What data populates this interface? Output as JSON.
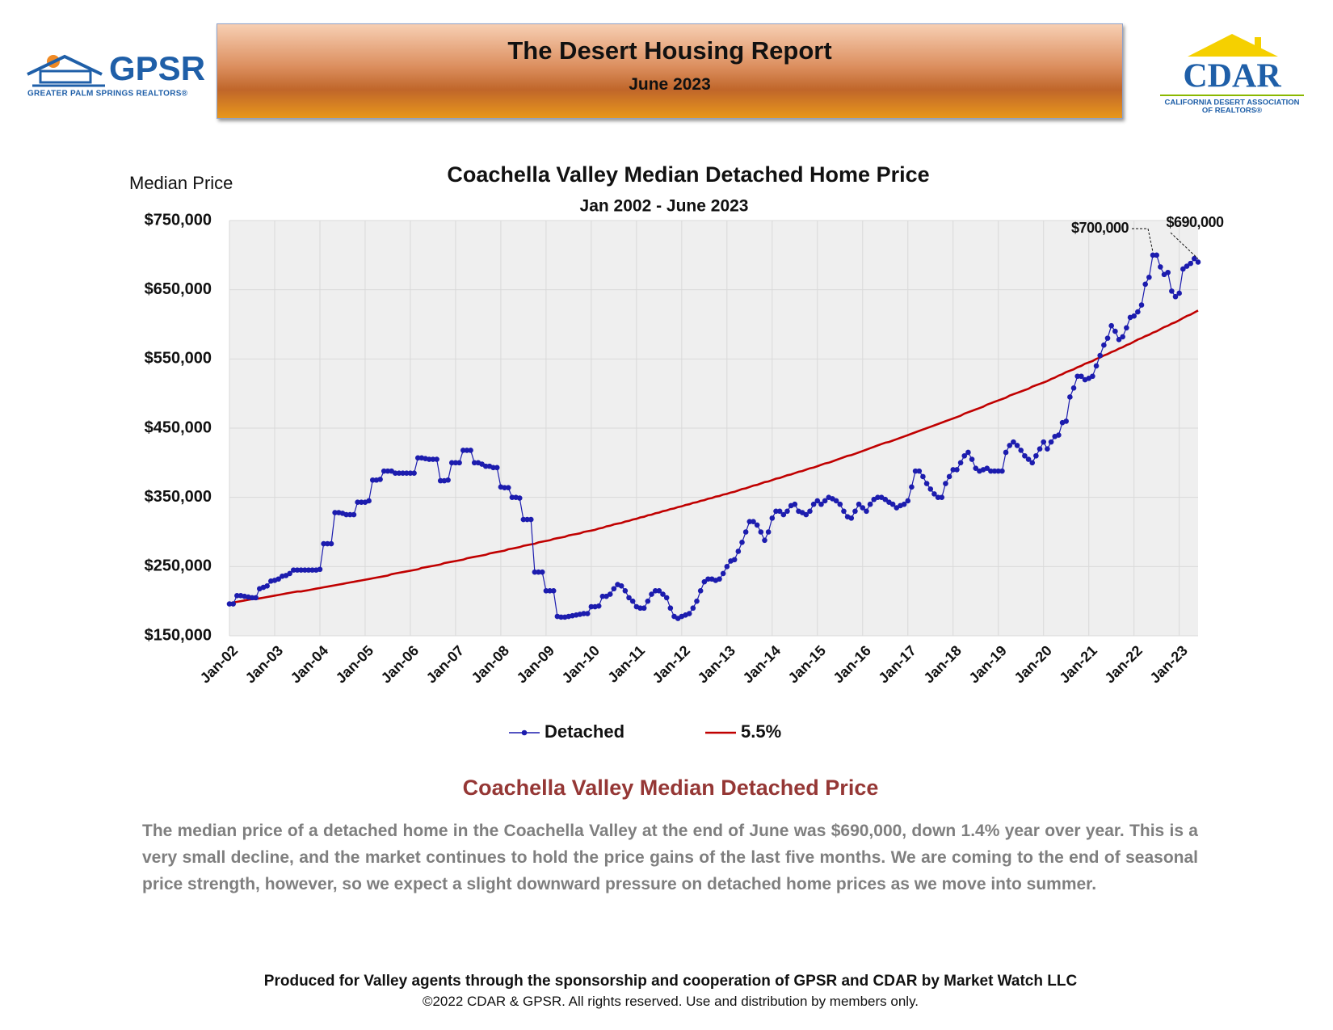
{
  "header": {
    "title": "The Desert Housing Report",
    "subtitle": "June 2023"
  },
  "logos": {
    "left": {
      "name": "GPSR",
      "tagline": "GREATER PALM SPRINGS REALTORS®"
    },
    "right": {
      "name": "CDAR",
      "tagline1": "CALIFORNIA DESERT ASSOCIATION",
      "tagline2": "OF REALTORS®"
    }
  },
  "chart_data": {
    "type": "line",
    "title": "Coachella Valley Median Detached Home Price",
    "subtitle": "Jan 2002 - June 2023",
    "y_label": "Median Price",
    "legend": "bottom",
    "grid": true,
    "ylim": [
      150000,
      750000
    ],
    "yticks": [
      {
        "value": 150000,
        "label": "$150,000"
      },
      {
        "value": 250000,
        "label": "$250,000"
      },
      {
        "value": 350000,
        "label": "$350,000"
      },
      {
        "value": 450000,
        "label": "$450,000"
      },
      {
        "value": 550000,
        "label": "$550,000"
      },
      {
        "value": 650000,
        "label": "$650,000"
      },
      {
        "value": 750000,
        "label": "$750,000"
      }
    ],
    "categories": [
      "Jan-02",
      null,
      null,
      null,
      null,
      null,
      null,
      null,
      null,
      null,
      null,
      null,
      "Jan-03",
      null,
      null,
      null,
      null,
      null,
      null,
      null,
      null,
      null,
      null,
      null,
      "Jan-04",
      null,
      null,
      null,
      null,
      null,
      null,
      null,
      null,
      null,
      null,
      null,
      "Jan-05",
      null,
      null,
      null,
      null,
      null,
      null,
      null,
      null,
      null,
      null,
      null,
      "Jan-06",
      null,
      null,
      null,
      null,
      null,
      null,
      null,
      null,
      null,
      null,
      null,
      "Jan-07",
      null,
      null,
      null,
      null,
      null,
      null,
      null,
      null,
      null,
      null,
      null,
      "Jan-08",
      null,
      null,
      null,
      null,
      null,
      null,
      null,
      null,
      null,
      null,
      null,
      "Jan-09",
      null,
      null,
      null,
      null,
      null,
      null,
      null,
      null,
      null,
      null,
      null,
      "Jan-10",
      null,
      null,
      null,
      null,
      null,
      null,
      null,
      null,
      null,
      null,
      null,
      "Jan-11",
      null,
      null,
      null,
      null,
      null,
      null,
      null,
      null,
      null,
      null,
      null,
      "Jan-12",
      null,
      null,
      null,
      null,
      null,
      null,
      null,
      null,
      null,
      null,
      null,
      "Jan-13",
      null,
      null,
      null,
      null,
      null,
      null,
      null,
      null,
      null,
      null,
      null,
      "Jan-14",
      null,
      null,
      null,
      null,
      null,
      null,
      null,
      null,
      null,
      null,
      null,
      "Jan-15",
      null,
      null,
      null,
      null,
      null,
      null,
      null,
      null,
      null,
      null,
      null,
      "Jan-16",
      null,
      null,
      null,
      null,
      null,
      null,
      null,
      null,
      null,
      null,
      null,
      "Jan-17",
      null,
      null,
      null,
      null,
      null,
      null,
      null,
      null,
      null,
      null,
      null,
      "Jan-18",
      null,
      null,
      null,
      null,
      null,
      null,
      null,
      null,
      null,
      null,
      null,
      "Jan-19",
      null,
      null,
      null,
      null,
      null,
      null,
      null,
      null,
      null,
      null,
      null,
      "Jan-20",
      null,
      null,
      null,
      null,
      null,
      null,
      null,
      null,
      null,
      null,
      null,
      "Jan-21",
      null,
      null,
      null,
      null,
      null,
      null,
      null,
      null,
      null,
      null,
      null,
      "Jan-22",
      null,
      null,
      null,
      null,
      null,
      null,
      null,
      null,
      null,
      null,
      null,
      "Jan-23",
      null,
      null,
      null,
      null,
      null
    ],
    "series": [
      {
        "name": "Detached",
        "color": "#1c1cae",
        "markers": true,
        "values": [
          196000,
          196000,
          208000,
          208000,
          207000,
          206000,
          205000,
          205000,
          218000,
          220000,
          222000,
          229000,
          230000,
          232000,
          236000,
          237000,
          240000,
          245000,
          245000,
          245000,
          245000,
          245000,
          245000,
          245000,
          246000,
          283000,
          283000,
          283000,
          328000,
          328000,
          327000,
          325000,
          325000,
          325000,
          343000,
          343000,
          343000,
          345000,
          375000,
          375000,
          376000,
          388000,
          388000,
          388000,
          385000,
          385000,
          385000,
          385000,
          385000,
          385000,
          407000,
          407000,
          406000,
          405000,
          405000,
          405000,
          374000,
          374000,
          375000,
          400000,
          400000,
          400000,
          418000,
          418000,
          418000,
          400000,
          400000,
          398000,
          395000,
          395000,
          393000,
          393000,
          365000,
          364000,
          364000,
          350000,
          350000,
          349000,
          318000,
          318000,
          318000,
          242000,
          242000,
          242000,
          215000,
          215000,
          215000,
          178000,
          177000,
          177000,
          178000,
          179000,
          180000,
          181000,
          182000,
          182000,
          192000,
          192000,
          193000,
          207000,
          207000,
          210000,
          218000,
          224000,
          222000,
          215000,
          205000,
          200000,
          192000,
          190000,
          190000,
          200000,
          210000,
          215000,
          215000,
          210000,
          205000,
          190000,
          178000,
          175000,
          178000,
          180000,
          182000,
          190000,
          200000,
          215000,
          228000,
          232000,
          232000,
          230000,
          232000,
          240000,
          250000,
          258000,
          260000,
          272000,
          285000,
          300000,
          315000,
          315000,
          310000,
          300000,
          288000,
          300000,
          320000,
          330000,
          330000,
          325000,
          330000,
          338000,
          340000,
          330000,
          328000,
          325000,
          330000,
          340000,
          345000,
          340000,
          345000,
          350000,
          348000,
          345000,
          340000,
          330000,
          322000,
          320000,
          330000,
          340000,
          335000,
          330000,
          340000,
          347000,
          350000,
          350000,
          347000,
          343000,
          340000,
          335000,
          338000,
          340000,
          345000,
          365000,
          388000,
          388000,
          380000,
          370000,
          362000,
          355000,
          350000,
          350000,
          370000,
          380000,
          390000,
          390000,
          400000,
          410000,
          415000,
          405000,
          392000,
          388000,
          390000,
          392000,
          388000,
          388000,
          388000,
          388000,
          415000,
          425000,
          430000,
          425000,
          418000,
          410000,
          405000,
          400000,
          410000,
          420000,
          430000,
          420000,
          430000,
          438000,
          440000,
          458000,
          460000,
          495000,
          508000,
          525000,
          525000,
          520000,
          522000,
          525000,
          540000,
          555000,
          570000,
          580000,
          598000,
          590000,
          578000,
          582000,
          595000,
          610000,
          612000,
          618000,
          628000,
          658000,
          668000,
          700000,
          700000,
          683000,
          672000,
          675000,
          648000,
          640000,
          645000,
          680000,
          684000,
          688000,
          695000,
          690000
        ]
      },
      {
        "name": "5.5%",
        "color": "#c00000",
        "markers": false,
        "values": [
          197000,
          198000,
          199000,
          200000,
          201000,
          202000,
          203000,
          203000,
          204000,
          205000,
          206000,
          207000,
          208000,
          209000,
          210000,
          211000,
          212000,
          213000,
          214000,
          214000,
          215000,
          216000,
          217000,
          218000,
          219000,
          220000,
          221000,
          222000,
          223000,
          224000,
          225000,
          226000,
          227000,
          228000,
          229000,
          230000,
          231000,
          232000,
          233000,
          234000,
          235000,
          236000,
          237000,
          239000,
          240000,
          241000,
          242000,
          243000,
          244000,
          245000,
          246000,
          248000,
          249000,
          250000,
          251000,
          252000,
          253000,
          255000,
          256000,
          257000,
          258000,
          259000,
          260000,
          262000,
          263000,
          264000,
          265000,
          266000,
          267000,
          269000,
          270000,
          271000,
          272000,
          273000,
          275000,
          276000,
          277000,
          278000,
          280000,
          281000,
          282000,
          283000,
          285000,
          286000,
          287000,
          288000,
          290000,
          291000,
          292000,
          293000,
          295000,
          296000,
          297000,
          298000,
          300000,
          301000,
          302000,
          303000,
          305000,
          306000,
          308000,
          309000,
          311000,
          312000,
          313000,
          315000,
          316000,
          318000,
          319000,
          321000,
          322000,
          324000,
          325000,
          327000,
          328000,
          330000,
          331000,
          333000,
          334000,
          336000,
          337000,
          339000,
          340000,
          342000,
          343000,
          345000,
          346000,
          348000,
          349000,
          351000,
          352000,
          354000,
          355000,
          357000,
          358000,
          360000,
          362000,
          363000,
          365000,
          367000,
          368000,
          370000,
          372000,
          373000,
          375000,
          377000,
          378000,
          380000,
          382000,
          383000,
          385000,
          387000,
          388000,
          390000,
          392000,
          393000,
          395000,
          397000,
          399000,
          400000,
          402000,
          404000,
          406000,
          408000,
          410000,
          411000,
          413000,
          415000,
          417000,
          419000,
          421000,
          423000,
          425000,
          427000,
          429000,
          430000,
          432000,
          434000,
          436000,
          438000,
          440000,
          442000,
          444000,
          446000,
          448000,
          450000,
          452000,
          454000,
          456000,
          458000,
          460000,
          462000,
          464000,
          466000,
          468000,
          471000,
          473000,
          475000,
          477000,
          479000,
          481000,
          484000,
          486000,
          488000,
          490000,
          492000,
          494000,
          497000,
          499000,
          501000,
          503000,
          505000,
          507000,
          510000,
          512000,
          514000,
          516000,
          518000,
          521000,
          523000,
          526000,
          528000,
          531000,
          533000,
          535000,
          538000,
          540000,
          543000,
          545000,
          547000,
          550000,
          552000,
          555000,
          557000,
          560000,
          562000,
          565000,
          567000,
          570000,
          572000,
          575000,
          578000,
          580000,
          583000,
          585000,
          588000,
          590000,
          593000,
          596000,
          598000,
          601000,
          603000,
          606000,
          609000,
          612000,
          614000,
          617000,
          620000
        ]
      }
    ],
    "annotations": [
      {
        "series": 0,
        "index": 245,
        "label": "$700,000"
      },
      {
        "series": 0,
        "index": 257,
        "label": "$690,000"
      }
    ]
  },
  "section": {
    "heading": "Coachella Valley Median Detached Price",
    "paragraph": "The median price of a detached home in the Coachella Valley at the end of June was $690,000, down 1.4% year over year. This is a very small decline, and the market continues to hold the price gains of the last five months. We are coming to the end of seasonal price strength, however, so we expect a slight downward pressure on detached home prices as we move into summer."
  },
  "footer": {
    "line1": "Produced for Valley agents through the sponsorship and cooperation of GPSR and CDAR by Market Watch LLC",
    "line2": "©2022 CDAR & GPSR.  All rights reserved.  Use and distribution by members only."
  }
}
